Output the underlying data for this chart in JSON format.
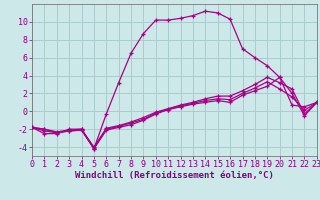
{
  "title": "",
  "xlabel": "Windchill (Refroidissement éolien,°C)",
  "ylabel": "",
  "bg_color": "#cce8e8",
  "grid_color": "#aacccc",
  "line_color": "#aa0088",
  "x_hours": [
    0,
    1,
    2,
    3,
    4,
    5,
    6,
    7,
    8,
    9,
    10,
    11,
    12,
    13,
    14,
    15,
    16,
    17,
    18,
    19,
    20,
    21,
    22,
    23
  ],
  "series": [
    [
      -1.8,
      -2.5,
      -2.5,
      -2.0,
      -2.0,
      -4.2,
      -0.3,
      3.2,
      6.5,
      8.7,
      10.2,
      10.2,
      10.4,
      10.7,
      11.2,
      11.0,
      10.3,
      7.0,
      6.0,
      5.1,
      3.8,
      2.0,
      -0.5,
      1.0
    ],
    [
      -1.8,
      -2.0,
      -2.4,
      -2.2,
      -2.1,
      -4.2,
      -2.1,
      -1.8,
      -1.5,
      -1.0,
      -0.3,
      0.2,
      0.5,
      0.8,
      1.0,
      1.2,
      1.0,
      1.8,
      2.3,
      2.8,
      3.8,
      0.7,
      0.5,
      1.0
    ],
    [
      -1.8,
      -2.0,
      -2.3,
      -2.1,
      -2.0,
      -4.0,
      -1.9,
      -1.6,
      -1.2,
      -0.7,
      -0.1,
      0.3,
      0.7,
      1.0,
      1.4,
      1.7,
      1.7,
      2.3,
      3.0,
      3.8,
      3.2,
      2.5,
      -0.3,
      1.0
    ],
    [
      -1.8,
      -2.2,
      -2.4,
      -2.2,
      -2.1,
      -4.1,
      -2.0,
      -1.7,
      -1.3,
      -0.9,
      -0.2,
      0.2,
      0.6,
      0.9,
      1.2,
      1.4,
      1.3,
      2.0,
      2.6,
      3.3,
      2.5,
      1.6,
      0.1,
      1.0
    ]
  ],
  "xlim": [
    0,
    23
  ],
  "ylim": [
    -5,
    12
  ],
  "yticks": [
    -4,
    -2,
    0,
    2,
    4,
    6,
    8,
    10
  ],
  "xticks": [
    0,
    1,
    2,
    3,
    4,
    5,
    6,
    7,
    8,
    9,
    10,
    11,
    12,
    13,
    14,
    15,
    16,
    17,
    18,
    19,
    20,
    21,
    22,
    23
  ],
  "tick_color": "#880088",
  "xlabel_fontsize": 6.5,
  "tick_fontsize": 6.0,
  "marker_size": 3.5
}
